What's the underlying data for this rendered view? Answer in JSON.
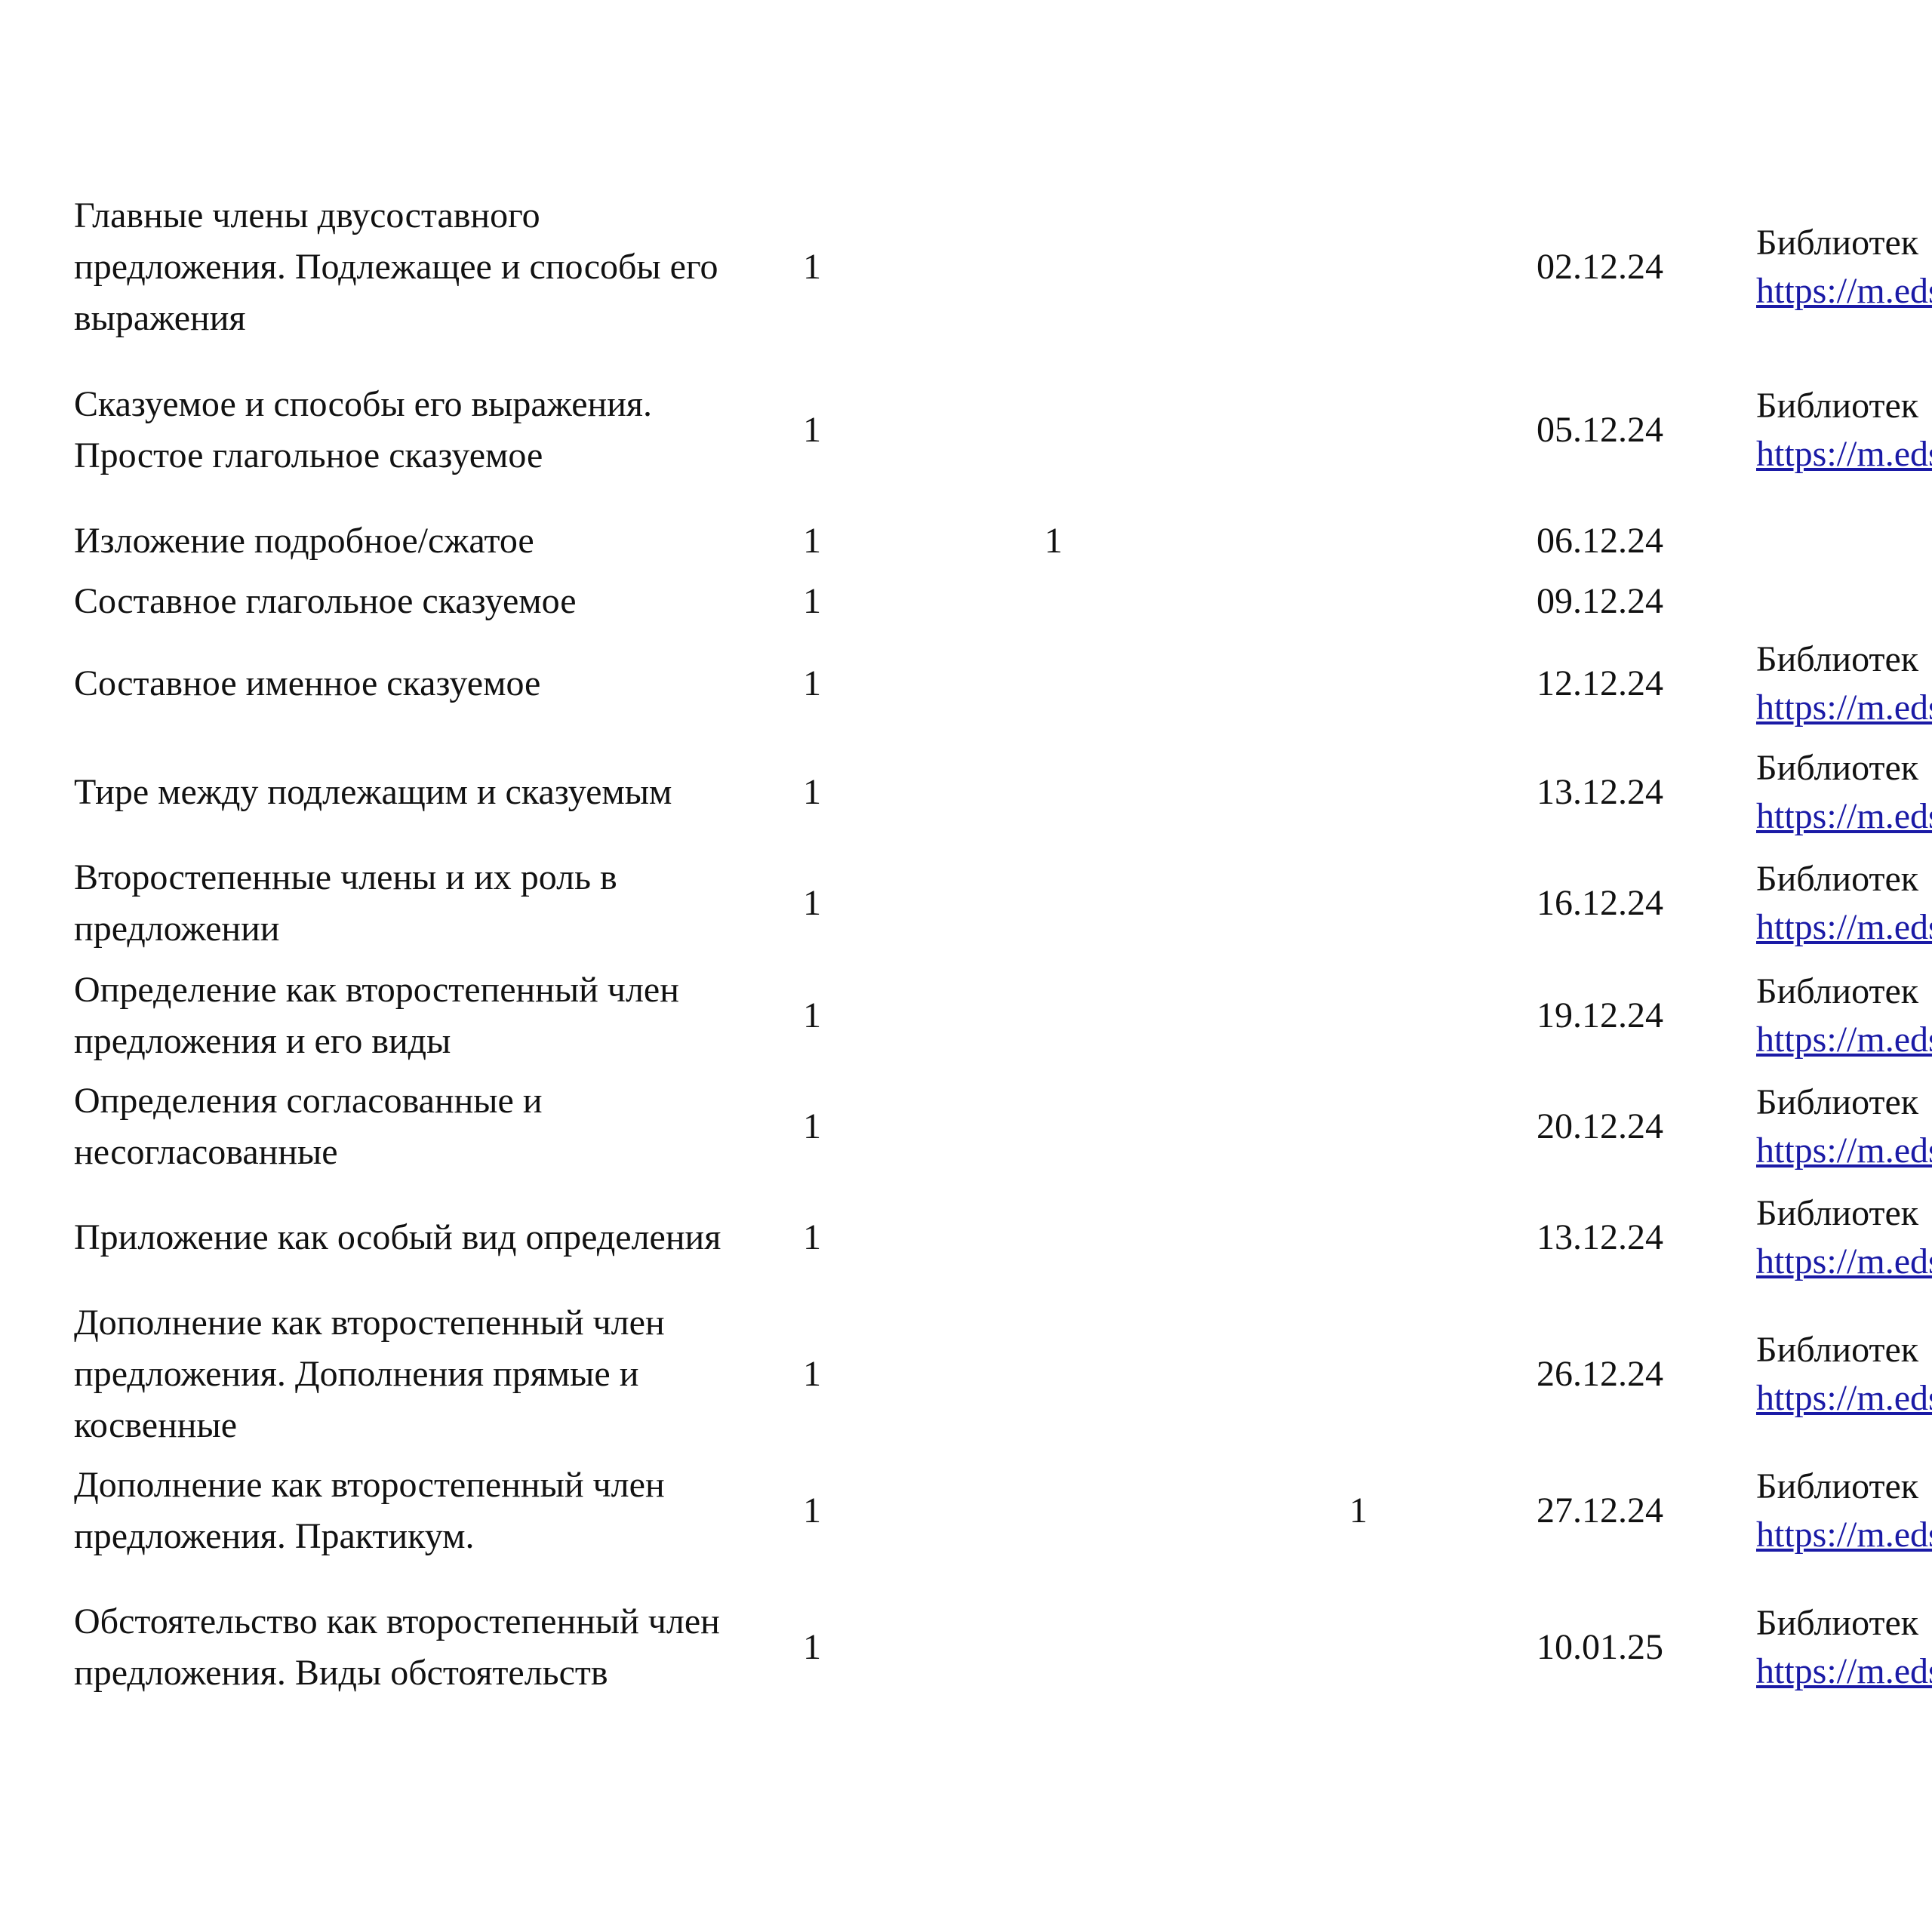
{
  "rows": [
    {
      "topic": "Главные члены двусоставного предложения. Подлежащее и способы его выражения",
      "hours": "1",
      "control": "",
      "practical": "",
      "date": "02.12.24",
      "resource": "Библиотек",
      "link": "https://m.eds"
    },
    {
      "topic": "Сказуемое и способы его выражения. Простое глагольное сказуемое",
      "hours": "1",
      "control": "",
      "practical": "",
      "date": "05.12.24",
      "resource": "Библиотек",
      "link": "https://m.eds"
    },
    {
      "topic": "Изложение подробное/сжатое",
      "hours": "1",
      "control": "1",
      "practical": "",
      "date": "06.12.24",
      "resource": "",
      "link": ""
    },
    {
      "topic": "Составное глагольное сказуемое",
      "hours": "1",
      "control": "",
      "practical": "",
      "date": "09.12.24",
      "resource": "",
      "link": ""
    },
    {
      "topic": "Составное именное сказуемое",
      "hours": "1",
      "control": "",
      "practical": "",
      "date": "12.12.24",
      "resource": "Библиотек",
      "link": "https://m.eds"
    },
    {
      "topic": "Тире между подлежащим и сказуемым",
      "hours": "1",
      "control": "",
      "practical": "",
      "date": "13.12.24",
      "resource": "Библиотек",
      "link": "https://m.eds"
    },
    {
      "topic": "Второстепенные члены и их роль в предложении",
      "hours": "1",
      "control": "",
      "practical": "",
      "date": "16.12.24",
      "resource": "Библиотек",
      "link": "https://m.eds"
    },
    {
      "topic": "Определение как второстепенный член предложения и его виды",
      "hours": "1",
      "control": "",
      "practical": "",
      "date": "19.12.24",
      "resource": "Библиотек",
      "link": "https://m.eds"
    },
    {
      "topic": "Определения согласованные и несогласованные",
      "hours": "1",
      "control": "",
      "practical": "",
      "date": "20.12.24",
      "resource": "Библиотек",
      "link": "https://m.eds"
    },
    {
      "topic": "Приложение как особый вид определения",
      "hours": "1",
      "control": "",
      "practical": "",
      "date": "13.12.24",
      "resource": "Библиотек",
      "link": "https://m.eds"
    },
    {
      "topic": "Дополнение как второстепенный член предложения. Дополнения прямые и косвенные",
      "hours": "1",
      "control": "",
      "practical": "",
      "date": "26.12.24",
      "resource": "Библиотек",
      "link": "https://m.eds"
    },
    {
      "topic": "Дополнение как второстепенный член предложения. Практикум.",
      "hours": "1",
      "control": "",
      "practical": "1",
      "date": "27.12.24",
      "resource": "Библиотек",
      "link": "https://m.eds"
    },
    {
      "topic": "Обстоятельство как второстепенный член предложения. Виды обстоятельств",
      "hours": "1",
      "control": "",
      "practical": "",
      "date": "10.01.25",
      "resource": "Библиотек",
      "link": "https://m.eds"
    }
  ],
  "colors": {
    "text": "#111111",
    "link": "#1a1aa6"
  }
}
